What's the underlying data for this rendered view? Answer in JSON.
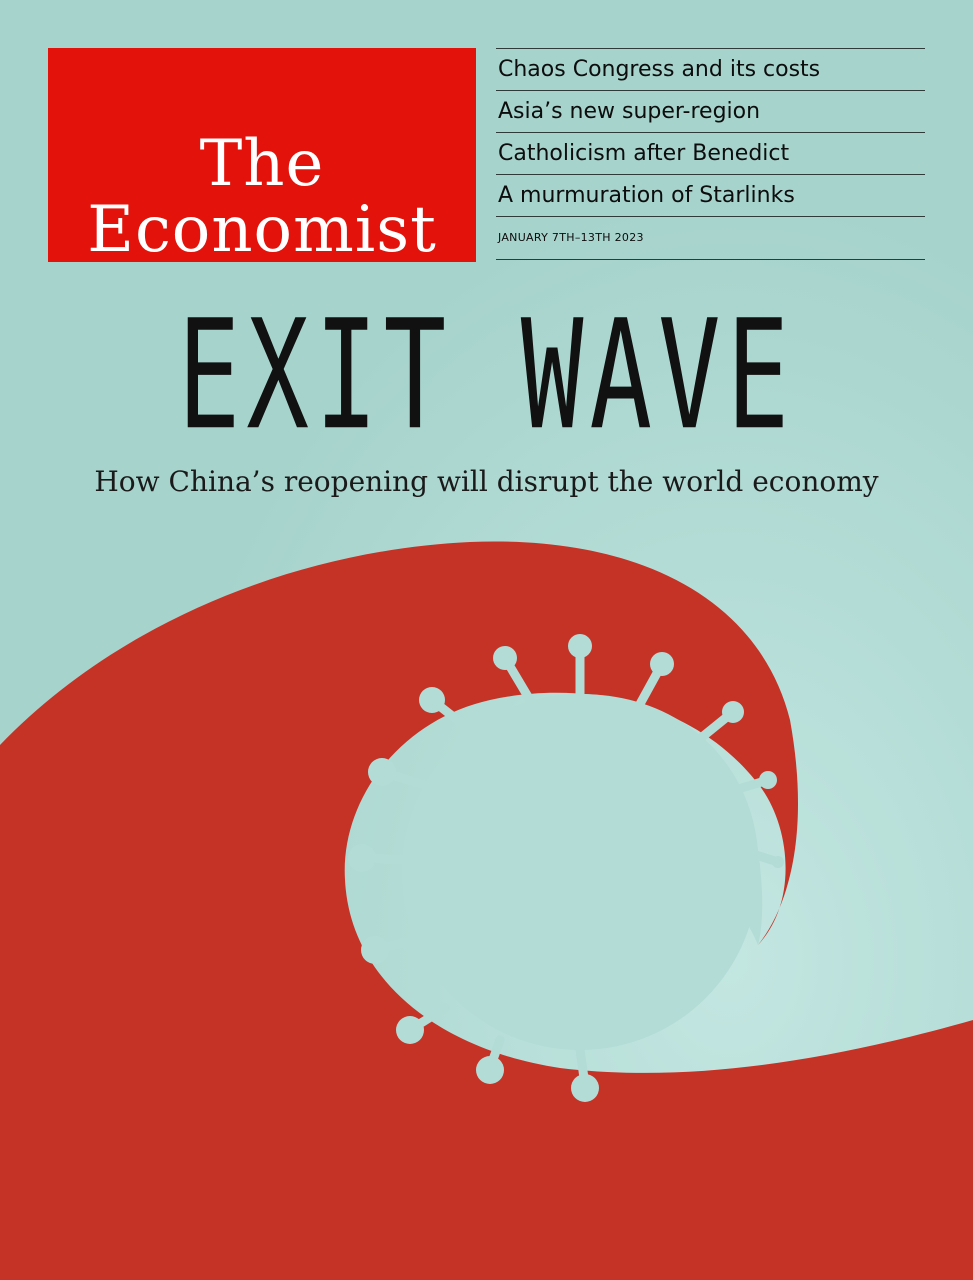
{
  "masthead": {
    "line1": "The",
    "line2": "Economist"
  },
  "headlines": [
    "Chaos Congress and its costs",
    "Asia’s new super-region",
    "Catholicism after Benedict",
    "A murmuration of Starlinks"
  ],
  "dateline": "JANUARY 7TH–13TH 2023",
  "cover_story": {
    "title": "EXIT WAVE",
    "subtitle": "How China’s reopening will disrupt the world economy"
  },
  "colors": {
    "background": "#a9d6cf",
    "wave_red": "#c53327",
    "masthead_red": "#e3120b"
  },
  "illustration": {
    "wave-icon": "red wave curling around a virus",
    "virus-icon": "coronavirus with spikes"
  }
}
